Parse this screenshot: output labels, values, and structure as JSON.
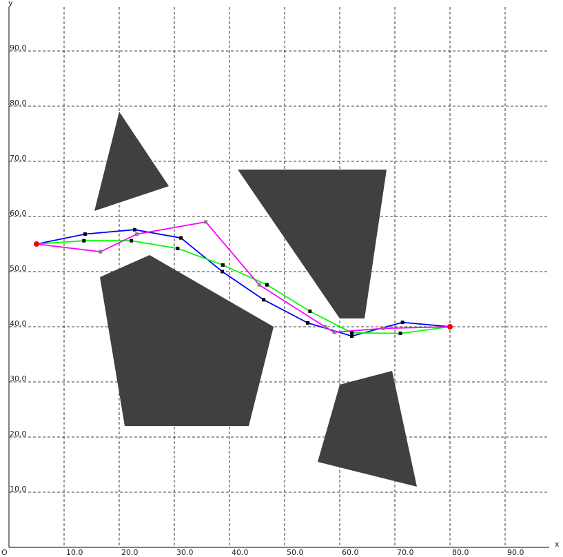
{
  "chart_data": {
    "type": "line",
    "xlabel": "x",
    "ylabel": "y",
    "origin_label": "O",
    "xlim": [
      0,
      98
    ],
    "ylim": [
      0,
      98
    ],
    "grid": true,
    "x_ticks": [
      10,
      20,
      30,
      40,
      50,
      60,
      70,
      80,
      90
    ],
    "y_ticks": [
      10,
      20,
      30,
      40,
      50,
      60,
      70,
      80,
      90
    ],
    "x_tick_labels": [
      "10.0",
      "20.0",
      "30.0",
      "40.0",
      "50.0",
      "60.0",
      "70.0",
      "80.0",
      "90.0"
    ],
    "y_tick_labels": [
      "10.0",
      "20.0",
      "30.0",
      "40.0",
      "50.0",
      "60.0",
      "70.0",
      "80.0",
      "90.0"
    ],
    "obstacles": [
      [
        [
          15.5,
          61
        ],
        [
          20,
          79
        ],
        [
          29,
          65.5
        ]
      ],
      [
        [
          41.5,
          68.5
        ],
        [
          68.5,
          68.5
        ],
        [
          64.5,
          41.5
        ],
        [
          60,
          41.5
        ]
      ],
      [
        [
          16.5,
          49
        ],
        [
          25.5,
          53
        ],
        [
          48,
          40
        ],
        [
          43.5,
          22
        ],
        [
          21,
          22
        ]
      ],
      [
        [
          60,
          29.5
        ],
        [
          69.5,
          32
        ],
        [
          74,
          11
        ],
        [
          56,
          15.5
        ]
      ]
    ],
    "endpoints": [
      [
        5,
        55
      ],
      [
        80,
        40
      ]
    ],
    "series": [
      {
        "color": "#0000ff",
        "marker_color": "#000000",
        "points": [
          [
            5,
            55
          ],
          [
            13.8,
            56.8
          ],
          [
            22.8,
            57.6
          ],
          [
            31.2,
            56.1
          ],
          [
            38.7,
            50
          ],
          [
            46.2,
            44.9
          ],
          [
            54.2,
            40.7
          ],
          [
            62.2,
            38.3
          ],
          [
            71.4,
            40.8
          ],
          [
            80,
            40
          ]
        ]
      },
      {
        "color": "#00ff00",
        "marker_color": "#000000",
        "points": [
          [
            5,
            55
          ],
          [
            13.6,
            55.6
          ],
          [
            22.2,
            55.6
          ],
          [
            30.6,
            54.2
          ],
          [
            38.8,
            51.2
          ],
          [
            46.8,
            47.6
          ],
          [
            54.6,
            42.8
          ],
          [
            62.2,
            38.9
          ],
          [
            71,
            38.8
          ],
          [
            80,
            40
          ]
        ]
      },
      {
        "color": "#ff00ff",
        "marker_color": "#808080",
        "points": [
          [
            5,
            55
          ],
          [
            16.6,
            53.6
          ],
          [
            23.2,
            56.8
          ],
          [
            35.7,
            59
          ],
          [
            45.4,
            47.6
          ],
          [
            57.3,
            40
          ],
          [
            59,
            39
          ],
          [
            67.9,
            39.7
          ],
          [
            80,
            40
          ]
        ]
      }
    ]
  },
  "colors": {
    "obstacle": "#404040",
    "endpoint": "#ff0000",
    "grid": "#000000",
    "axis": "#000000"
  }
}
